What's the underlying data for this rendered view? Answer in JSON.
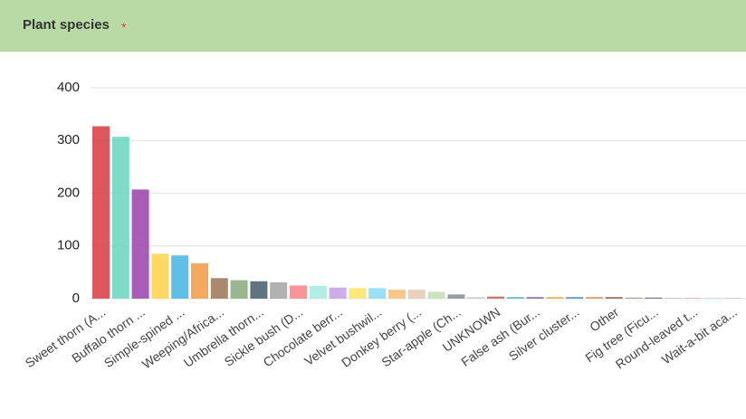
{
  "header": {
    "title": "Plant species",
    "marker": "*"
  },
  "chart_data": {
    "type": "bar",
    "categories": [
      "Sweet thorn (A...",
      null,
      "Buffalo thorn ...",
      null,
      "Simple-spined ...",
      null,
      "Weeping/Africa...",
      null,
      "Umbrella thorn...",
      null,
      "Sickle bush (D...",
      null,
      "Chocolate berr...",
      null,
      "Velvet bushwil...",
      null,
      "Donkey berry (...",
      null,
      "Star-apple (Ch...",
      null,
      "UNKNOWN",
      null,
      "False ash (Bur...",
      null,
      "Silver cluster...",
      null,
      "Other",
      null,
      "Fig tree (Ficu...",
      null,
      "Round-leaved t...",
      null,
      "Wait-a-bit aca..."
    ],
    "values": [
      327,
      307,
      207,
      85,
      82,
      67,
      39,
      35,
      33,
      31,
      25,
      24,
      21,
      20,
      20,
      17,
      17,
      13,
      8,
      3,
      4,
      3,
      3,
      3,
      3,
      3,
      3,
      2,
      2,
      1,
      1,
      1,
      1
    ],
    "colors": [
      "#d9454a",
      "#6dd9c0",
      "#a04aad",
      "#ffd54f",
      "#4fb8e6",
      "#f4a04e",
      "#a27b5e",
      "#8fae84",
      "#4e6570",
      "#a8a8a8",
      "#f68a8f",
      "#a6eee0",
      "#c9a3e6",
      "#ffe46a",
      "#8fdcf4",
      "#f9c17c",
      "#e6cdb6",
      "#c6dfb8",
      "#8c969c",
      "#cccccc",
      "#c86a5a",
      "#5ab8b0",
      "#9060a8",
      "#e0b040",
      "#5090c0",
      "#e09050",
      "#906050",
      "#90a090",
      "#607080",
      "#a0a0a0",
      "#e08080",
      "#90d8d0",
      "#b0a0c0"
    ],
    "ylim": [
      0,
      400
    ],
    "yticks": [
      0,
      100,
      200,
      300,
      400
    ],
    "grid": true
  }
}
